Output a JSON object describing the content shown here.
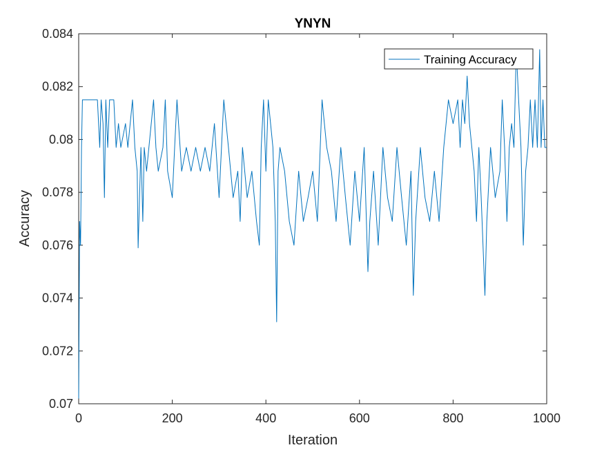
{
  "chart_data": {
    "type": "line",
    "title": "YNYN",
    "xlabel": "Iteration",
    "ylabel": "Accuracy",
    "xlim": [
      0,
      1000
    ],
    "ylim": [
      0.07,
      0.084
    ],
    "x_ticks": [
      0,
      200,
      400,
      600,
      800,
      1000
    ],
    "x_tick_labels": [
      "0",
      "200",
      "400",
      "600",
      "800",
      "1000"
    ],
    "y_ticks": [
      0.07,
      0.072,
      0.074,
      0.076,
      0.078,
      0.08,
      0.082,
      0.084
    ],
    "y_tick_labels": [
      "0.07",
      "0.072",
      "0.074",
      "0.076",
      "0.078",
      "0.08",
      "0.082",
      "0.084"
    ],
    "grid": false,
    "legend_position": "top-right",
    "series": [
      {
        "name": "Training Accuracy",
        "color": "#0072BD",
        "points": [
          [
            0,
            0.0702
          ],
          [
            2,
            0.0769
          ],
          [
            4,
            0.076
          ],
          [
            6,
            0.0797
          ],
          [
            8,
            0.0815
          ],
          [
            40,
            0.0815
          ],
          [
            45,
            0.0797
          ],
          [
            48,
            0.0815
          ],
          [
            52,
            0.0806
          ],
          [
            55,
            0.0778
          ],
          [
            58,
            0.0815
          ],
          [
            62,
            0.0797
          ],
          [
            66,
            0.0815
          ],
          [
            75,
            0.0815
          ],
          [
            80,
            0.0797
          ],
          [
            85,
            0.0806
          ],
          [
            90,
            0.0797
          ],
          [
            100,
            0.0806
          ],
          [
            105,
            0.0797
          ],
          [
            115,
            0.0815
          ],
          [
            120,
            0.0797
          ],
          [
            125,
            0.0788
          ],
          [
            127,
            0.0759
          ],
          [
            130,
            0.0778
          ],
          [
            133,
            0.0797
          ],
          [
            137,
            0.0769
          ],
          [
            140,
            0.0797
          ],
          [
            145,
            0.0788
          ],
          [
            150,
            0.0797
          ],
          [
            160,
            0.0815
          ],
          [
            165,
            0.0797
          ],
          [
            170,
            0.0788
          ],
          [
            180,
            0.0797
          ],
          [
            185,
            0.0815
          ],
          [
            190,
            0.0788
          ],
          [
            200,
            0.0778
          ],
          [
            205,
            0.0797
          ],
          [
            210,
            0.0815
          ],
          [
            220,
            0.0788
          ],
          [
            230,
            0.0797
          ],
          [
            240,
            0.0788
          ],
          [
            250,
            0.0797
          ],
          [
            260,
            0.0788
          ],
          [
            270,
            0.0797
          ],
          [
            280,
            0.0788
          ],
          [
            290,
            0.0806
          ],
          [
            300,
            0.0778
          ],
          [
            310,
            0.0815
          ],
          [
            320,
            0.0797
          ],
          [
            330,
            0.0778
          ],
          [
            340,
            0.0788
          ],
          [
            345,
            0.0769
          ],
          [
            350,
            0.0797
          ],
          [
            360,
            0.0778
          ],
          [
            370,
            0.0788
          ],
          [
            380,
            0.0769
          ],
          [
            386,
            0.076
          ],
          [
            390,
            0.0797
          ],
          [
            395,
            0.0815
          ],
          [
            400,
            0.0788
          ],
          [
            405,
            0.0815
          ],
          [
            410,
            0.0806
          ],
          [
            415,
            0.0797
          ],
          [
            420,
            0.0769
          ],
          [
            423,
            0.0731
          ],
          [
            426,
            0.0788
          ],
          [
            430,
            0.0797
          ],
          [
            440,
            0.0788
          ],
          [
            450,
            0.0769
          ],
          [
            460,
            0.076
          ],
          [
            470,
            0.0788
          ],
          [
            480,
            0.0769
          ],
          [
            490,
            0.0778
          ],
          [
            500,
            0.0788
          ],
          [
            510,
            0.0769
          ],
          [
            520,
            0.0815
          ],
          [
            530,
            0.0797
          ],
          [
            540,
            0.0788
          ],
          [
            550,
            0.0769
          ],
          [
            560,
            0.0797
          ],
          [
            570,
            0.0778
          ],
          [
            580,
            0.076
          ],
          [
            590,
            0.0788
          ],
          [
            600,
            0.0769
          ],
          [
            610,
            0.0797
          ],
          [
            618,
            0.075
          ],
          [
            622,
            0.0769
          ],
          [
            630,
            0.0788
          ],
          [
            640,
            0.076
          ],
          [
            650,
            0.0797
          ],
          [
            660,
            0.0778
          ],
          [
            670,
            0.0769
          ],
          [
            680,
            0.0797
          ],
          [
            690,
            0.0778
          ],
          [
            700,
            0.076
          ],
          [
            710,
            0.0788
          ],
          [
            715,
            0.0741
          ],
          [
            720,
            0.0769
          ],
          [
            730,
            0.0797
          ],
          [
            740,
            0.0778
          ],
          [
            750,
            0.0769
          ],
          [
            760,
            0.0788
          ],
          [
            770,
            0.0769
          ],
          [
            780,
            0.0797
          ],
          [
            790,
            0.0815
          ],
          [
            800,
            0.0806
          ],
          [
            810,
            0.0815
          ],
          [
            815,
            0.0797
          ],
          [
            820,
            0.0815
          ],
          [
            825,
            0.0806
          ],
          [
            830,
            0.0824
          ],
          [
            835,
            0.0806
          ],
          [
            840,
            0.0797
          ],
          [
            845,
            0.0788
          ],
          [
            850,
            0.0769
          ],
          [
            855,
            0.0797
          ],
          [
            860,
            0.0778
          ],
          [
            868,
            0.0741
          ],
          [
            872,
            0.0769
          ],
          [
            880,
            0.0797
          ],
          [
            890,
            0.0778
          ],
          [
            900,
            0.0788
          ],
          [
            905,
            0.0815
          ],
          [
            910,
            0.0797
          ],
          [
            915,
            0.0769
          ],
          [
            920,
            0.0797
          ],
          [
            925,
            0.0806
          ],
          [
            930,
            0.0797
          ],
          [
            935,
            0.0834
          ],
          [
            940,
            0.0815
          ],
          [
            945,
            0.0797
          ],
          [
            950,
            0.076
          ],
          [
            955,
            0.0788
          ],
          [
            960,
            0.0797
          ],
          [
            965,
            0.0815
          ],
          [
            970,
            0.0797
          ],
          [
            975,
            0.0815
          ],
          [
            980,
            0.0797
          ],
          [
            985,
            0.0834
          ],
          [
            988,
            0.0797
          ],
          [
            992,
            0.0815
          ],
          [
            996,
            0.0797
          ],
          [
            1000,
            0.0797
          ]
        ]
      }
    ]
  }
}
